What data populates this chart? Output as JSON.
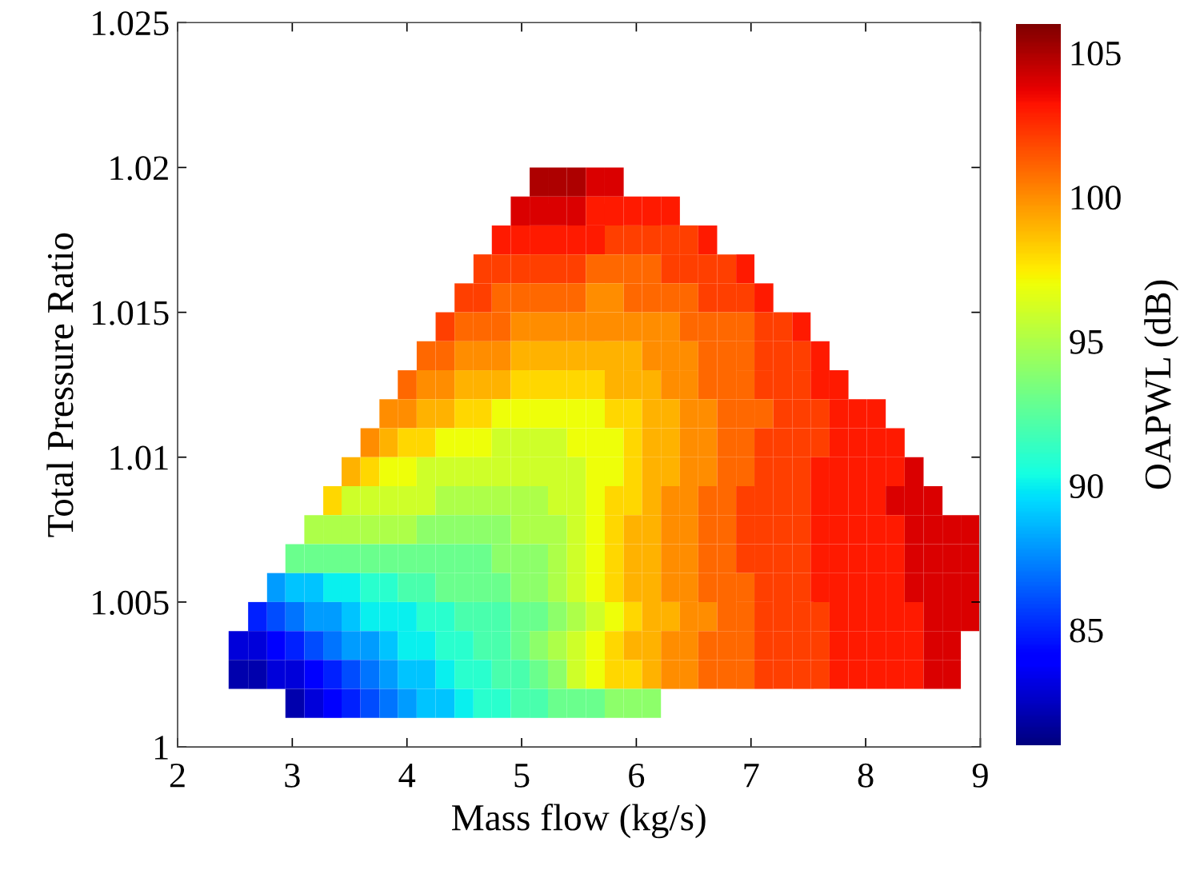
{
  "chart_data": {
    "type": "heatmap",
    "xlabel": "Mass flow (kg/s)",
    "ylabel": "Total Pressure Ratio",
    "clabel": "OAPWL (dB)",
    "x": [
      2.53,
      2.7,
      2.86,
      3.02,
      3.19,
      3.35,
      3.51,
      3.68,
      3.84,
      4.0,
      4.17,
      4.33,
      4.5,
      4.66,
      4.82,
      4.99,
      5.15,
      5.31,
      5.48,
      5.64,
      5.81,
      5.97,
      6.13,
      6.3,
      6.46,
      6.62,
      6.79,
      6.95,
      7.11,
      7.28,
      7.44,
      7.6,
      7.77,
      7.93,
      8.09,
      8.26,
      8.42,
      8.59,
      8.75,
      8.91
    ],
    "y": [
      1.0195,
      1.0185,
      1.0175,
      1.0165,
      1.0155,
      1.0145,
      1.0135,
      1.0125,
      1.0115,
      1.0105,
      1.0095,
      1.0085,
      1.0075,
      1.0065,
      1.0055,
      1.0045,
      1.0035,
      1.0025,
      1.0015
    ],
    "cells": [
      [
        null,
        null,
        null,
        null,
        null,
        null,
        null,
        null,
        null,
        null,
        null,
        null,
        null,
        null,
        null,
        null,
        105,
        105,
        105,
        104,
        104,
        null,
        null,
        null,
        null,
        null,
        null,
        null,
        null,
        null,
        null,
        null,
        null,
        null,
        null,
        null,
        null,
        null,
        null,
        null
      ],
      [
        null,
        null,
        null,
        null,
        null,
        null,
        null,
        null,
        null,
        null,
        null,
        null,
        null,
        null,
        null,
        104,
        104,
        104,
        104,
        103,
        103,
        103,
        103,
        103,
        null,
        null,
        null,
        null,
        null,
        null,
        null,
        null,
        null,
        null,
        null,
        null,
        null,
        null,
        null,
        null
      ],
      [
        null,
        null,
        null,
        null,
        null,
        null,
        null,
        null,
        null,
        null,
        null,
        null,
        null,
        null,
        103,
        103,
        103,
        103,
        103,
        103,
        102,
        102,
        102,
        102,
        102,
        103,
        null,
        null,
        null,
        null,
        null,
        null,
        null,
        null,
        null,
        null,
        null,
        null,
        null,
        null
      ],
      [
        null,
        null,
        null,
        null,
        null,
        null,
        null,
        null,
        null,
        null,
        null,
        null,
        null,
        102,
        102,
        102,
        102,
        102,
        102,
        101,
        101,
        101,
        101,
        102,
        102,
        102,
        102,
        103,
        null,
        null,
        null,
        null,
        null,
        null,
        null,
        null,
        null,
        null,
        null,
        null
      ],
      [
        null,
        null,
        null,
        null,
        null,
        null,
        null,
        null,
        null,
        null,
        null,
        null,
        102,
        102,
        101,
        101,
        101,
        101,
        101,
        100,
        100,
        101,
        101,
        101,
        101,
        102,
        102,
        102,
        103,
        null,
        null,
        null,
        null,
        null,
        null,
        null,
        null,
        null,
        null,
        null
      ],
      [
        null,
        null,
        null,
        null,
        null,
        null,
        null,
        null,
        null,
        null,
        null,
        102,
        101,
        101,
        101,
        100,
        100,
        100,
        100,
        100,
        100,
        100,
        100,
        100,
        101,
        101,
        101,
        101,
        102,
        102,
        103,
        null,
        null,
        null,
        null,
        null,
        null,
        null,
        null,
        null
      ],
      [
        null,
        null,
        null,
        null,
        null,
        null,
        null,
        null,
        null,
        null,
        101,
        101,
        100,
        100,
        100,
        99,
        99,
        99,
        99,
        99,
        99,
        99,
        100,
        100,
        100,
        101,
        101,
        101,
        102,
        102,
        102,
        103,
        null,
        null,
        null,
        null,
        null,
        null,
        null,
        null
      ],
      [
        null,
        null,
        null,
        null,
        null,
        null,
        null,
        null,
        null,
        101,
        100,
        100,
        99,
        99,
        99,
        98,
        98,
        98,
        98,
        98,
        99,
        99,
        99,
        100,
        100,
        101,
        101,
        101,
        102,
        102,
        102,
        103,
        103,
        null,
        null,
        null,
        null,
        null,
        null,
        null
      ],
      [
        null,
        null,
        null,
        null,
        null,
        null,
        null,
        null,
        100,
        100,
        99,
        99,
        98,
        98,
        97,
        97,
        97,
        97,
        97,
        97,
        98,
        98,
        99,
        99,
        100,
        100,
        101,
        101,
        101,
        102,
        102,
        102,
        103,
        103,
        103,
        null,
        null,
        null,
        null,
        null
      ],
      [
        null,
        null,
        null,
        null,
        null,
        null,
        null,
        100,
        99,
        98,
        98,
        97,
        97,
        97,
        96,
        96,
        96,
        96,
        97,
        97,
        97,
        98,
        99,
        99,
        100,
        100,
        101,
        101,
        102,
        102,
        102,
        102,
        103,
        103,
        103,
        103,
        null,
        null,
        null,
        null
      ],
      [
        null,
        null,
        null,
        null,
        null,
        null,
        99,
        98,
        97,
        97,
        96,
        96,
        96,
        96,
        96,
        96,
        96,
        96,
        96,
        97,
        97,
        98,
        99,
        99,
        100,
        100,
        101,
        101,
        102,
        102,
        102,
        103,
        103,
        103,
        103,
        103,
        104,
        null,
        null,
        null
      ],
      [
        null,
        null,
        null,
        null,
        null,
        98,
        96,
        96,
        96,
        96,
        96,
        95,
        95,
        95,
        95,
        95,
        95,
        96,
        96,
        97,
        98,
        98,
        99,
        100,
        100,
        101,
        101,
        102,
        102,
        102,
        102,
        103,
        103,
        103,
        103,
        104,
        104,
        104,
        null,
        null
      ],
      [
        null,
        null,
        null,
        null,
        95,
        95,
        95,
        95,
        95,
        95,
        94,
        94,
        94,
        94,
        94,
        95,
        95,
        95,
        96,
        97,
        98,
        99,
        99,
        100,
        100,
        101,
        101,
        102,
        102,
        102,
        102,
        103,
        103,
        103,
        103,
        103,
        104,
        104,
        104,
        104
      ],
      [
        null,
        null,
        null,
        93,
        93,
        93,
        93,
        93,
        93,
        93,
        93,
        93,
        93,
        93,
        94,
        94,
        94,
        95,
        96,
        97,
        98,
        99,
        99,
        100,
        100,
        101,
        101,
        102,
        102,
        102,
        102,
        103,
        103,
        103,
        103,
        103,
        104,
        104,
        104,
        104
      ],
      [
        null,
        null,
        88,
        89,
        89,
        90,
        90,
        91,
        91,
        92,
        92,
        93,
        93,
        93,
        93,
        94,
        94,
        95,
        96,
        97,
        98,
        99,
        99,
        100,
        100,
        101,
        101,
        101,
        102,
        102,
        102,
        103,
        103,
        103,
        103,
        103,
        104,
        104,
        104,
        104
      ],
      [
        null,
        85,
        86,
        87,
        88,
        88,
        89,
        90,
        90,
        90,
        91,
        91,
        92,
        92,
        92,
        93,
        93,
        94,
        95,
        96,
        97,
        98,
        99,
        99,
        100,
        100,
        101,
        101,
        102,
        102,
        102,
        102,
        103,
        103,
        103,
        103,
        103,
        104,
        104,
        104
      ],
      [
        83,
        83,
        84,
        85,
        86,
        87,
        88,
        88,
        89,
        90,
        90,
        91,
        91,
        92,
        92,
        93,
        94,
        95,
        96,
        97,
        98,
        99,
        99,
        100,
        100,
        101,
        101,
        101,
        102,
        102,
        102,
        102,
        103,
        103,
        103,
        103,
        103,
        104,
        104,
        null
      ],
      [
        82,
        82,
        83,
        83,
        84,
        85,
        86,
        87,
        88,
        89,
        89,
        90,
        91,
        91,
        92,
        92,
        93,
        94,
        96,
        97,
        98,
        98,
        99,
        100,
        100,
        101,
        101,
        101,
        102,
        102,
        102,
        102,
        103,
        103,
        103,
        103,
        103,
        104,
        104,
        null
      ],
      [
        null,
        null,
        null,
        82,
        83,
        84,
        85,
        86,
        87,
        88,
        89,
        89,
        90,
        91,
        91,
        92,
        92,
        93,
        93,
        93,
        94,
        94,
        94,
        null,
        null,
        null,
        null,
        null,
        null,
        null,
        null,
        null,
        null,
        null,
        null,
        null,
        null,
        null,
        null,
        null
      ]
    ],
    "clim": [
      81,
      106
    ],
    "cticks": [
      85,
      90,
      95,
      100,
      105
    ],
    "xlim": [
      2,
      9
    ],
    "xticks": [
      2,
      3,
      4,
      5,
      6,
      7,
      8,
      9
    ],
    "ylim": [
      1,
      1.025
    ],
    "yticks": [
      1,
      1.005,
      1.01,
      1.015,
      1.02,
      1.025
    ],
    "grid": false
  }
}
